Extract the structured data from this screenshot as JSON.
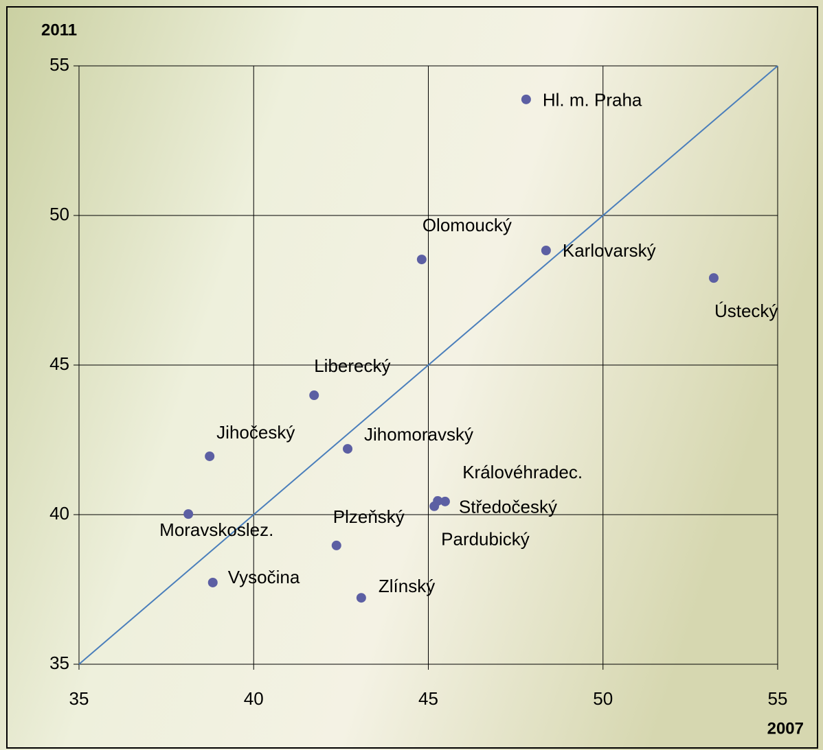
{
  "chart_data": {
    "type": "scatter",
    "xlabel": "2007",
    "ylabel": "2011",
    "labels": [
      "Hl. m. Praha",
      "Olomoucký",
      "Karlovarský",
      "Ústecký",
      "Liberecký",
      "Jihočeský",
      "Jihomoravský",
      "Královéhradec.",
      "Středočeský",
      "Pardubický",
      "Moravskoslez.",
      "Plzeňský",
      "Vysočina",
      "Zlínský"
    ],
    "x": [
      47.8,
      44.81,
      48.37,
      53.17,
      41.73,
      38.74,
      42.69,
      45.27,
      45.48,
      45.17,
      38.13,
      42.37,
      38.83,
      43.08
    ],
    "values": [
      53.88,
      48.53,
      48.83,
      47.91,
      43.99,
      41.95,
      42.2,
      40.46,
      40.44,
      40.28,
      40.02,
      38.97,
      37.73,
      37.22
    ],
    "color": "#5c5fa3",
    "xlim": [
      35,
      55
    ],
    "ylim": [
      35,
      55
    ],
    "xticks": [
      35,
      40,
      45,
      50,
      55
    ],
    "yticks": [
      35,
      40,
      45,
      50,
      55
    ],
    "grid": true
  }
}
